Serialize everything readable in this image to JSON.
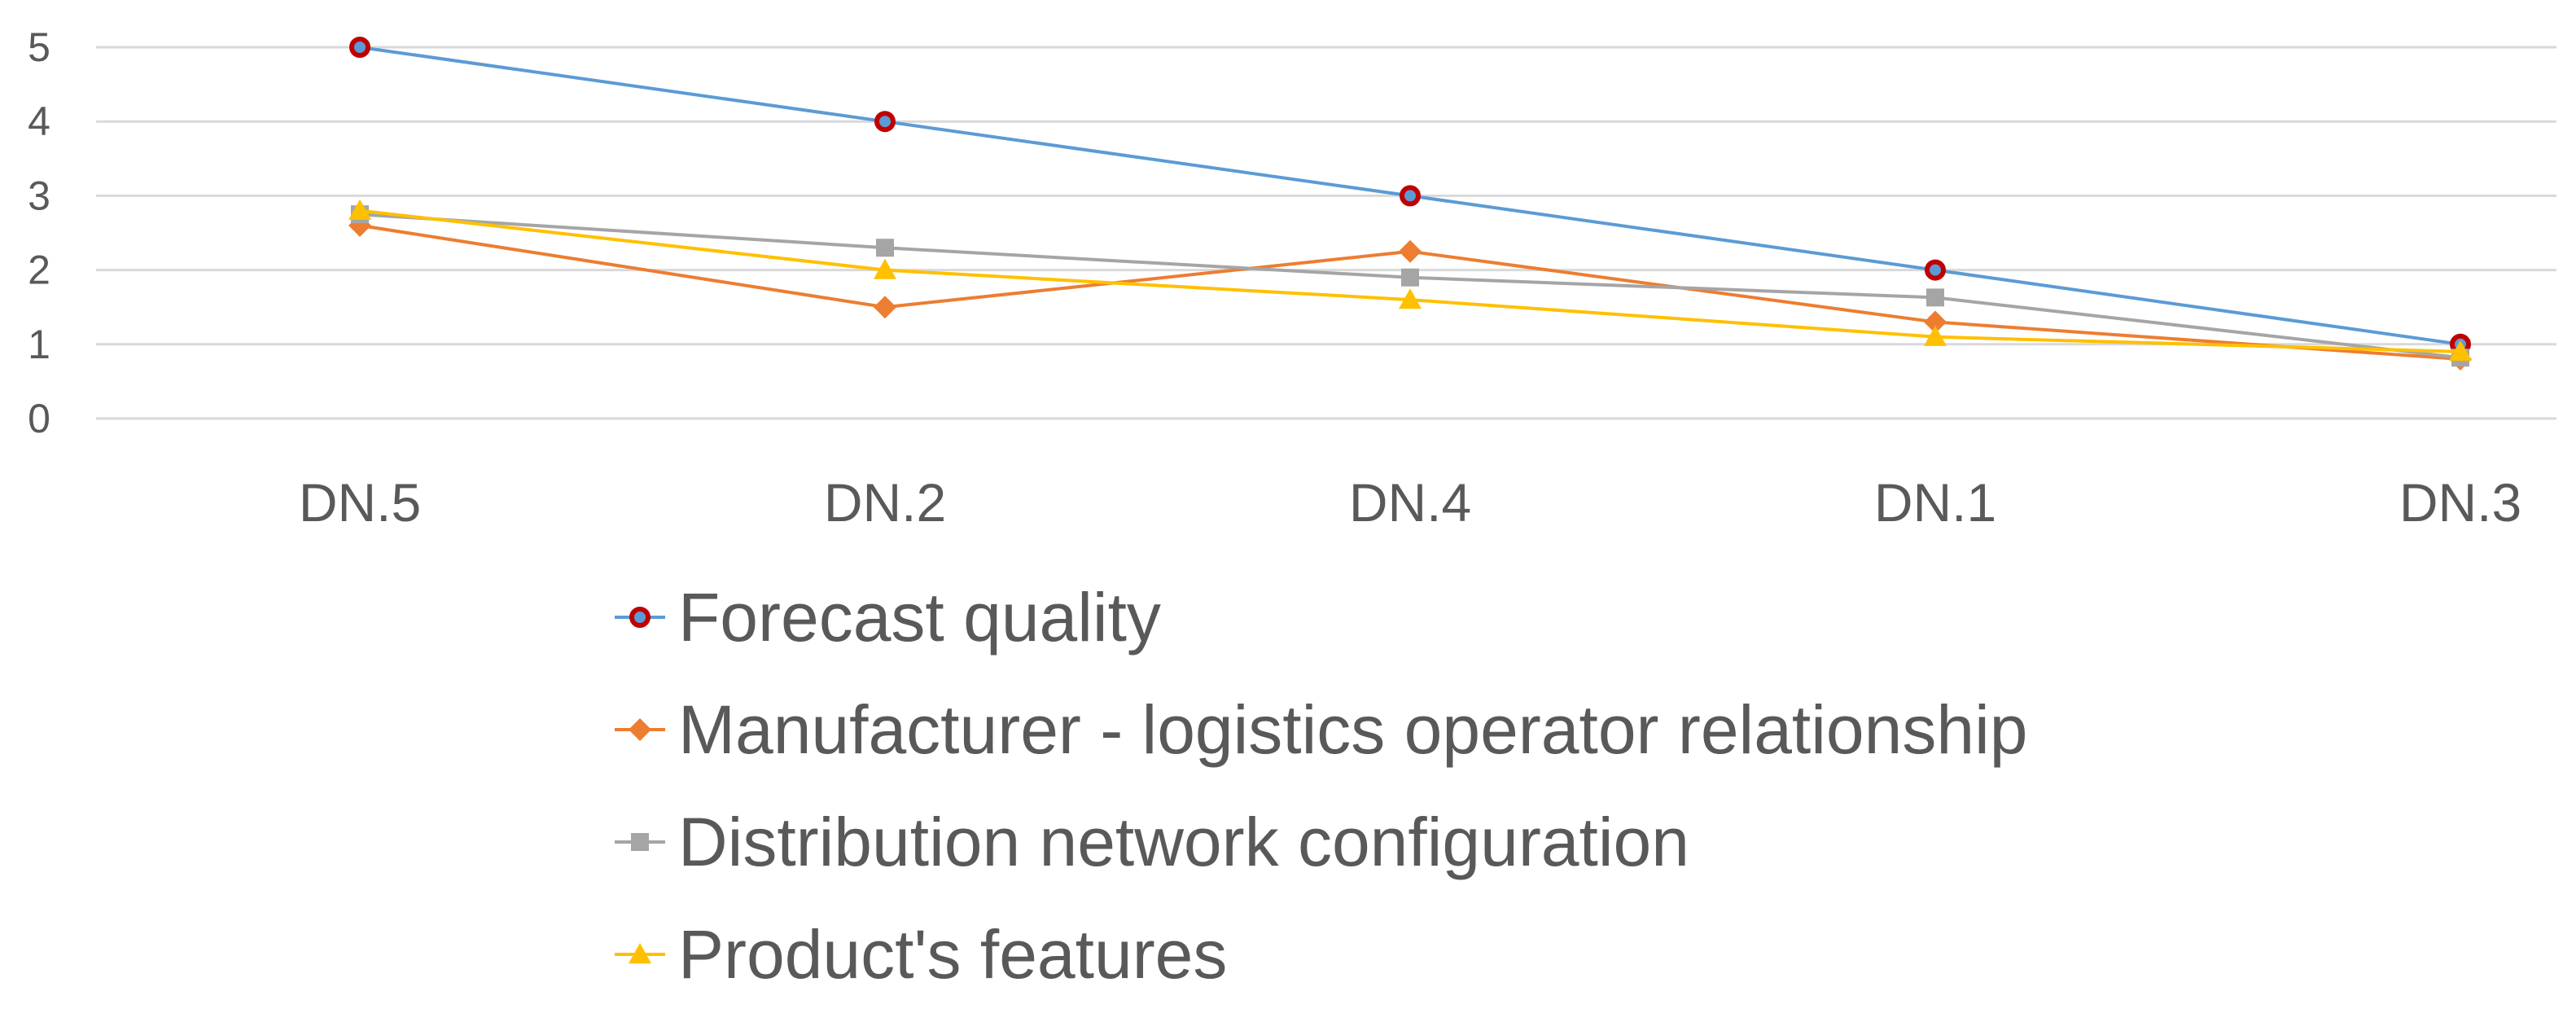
{
  "chart_data": {
    "type": "line",
    "title": "",
    "xlabel": "",
    "ylabel": "",
    "categories": [
      "DN.5",
      "DN.2",
      "DN.4",
      "DN.1",
      "DN.3"
    ],
    "ylim": [
      0,
      5
    ],
    "yticks": [
      0,
      1,
      2,
      3,
      4,
      5
    ],
    "grid": true,
    "legend_position": "bottom",
    "series": [
      {
        "name": "Forecast quality",
        "values": [
          5,
          4,
          3,
          2,
          1
        ],
        "color": "#5B9BD5",
        "marker": "circle",
        "marker_color": "#C00000"
      },
      {
        "name": "Manufacturer - logistics operator relationship",
        "values": [
          2.6,
          1.5,
          2.25,
          1.3,
          0.8
        ],
        "color": "#ED7D31",
        "marker": "diamond",
        "marker_color": "#ED7D31"
      },
      {
        "name": "Distribution network configuration",
        "values": [
          2.75,
          2.3,
          1.9,
          1.63,
          0.82
        ],
        "color": "#A5A5A5",
        "marker": "square",
        "marker_color": "#A5A5A5"
      },
      {
        "name": "Product's features",
        "values": [
          2.8,
          2.0,
          1.6,
          1.1,
          0.9
        ],
        "color": "#FFC000",
        "marker": "triangle",
        "marker_color": "#FFC000"
      }
    ]
  }
}
